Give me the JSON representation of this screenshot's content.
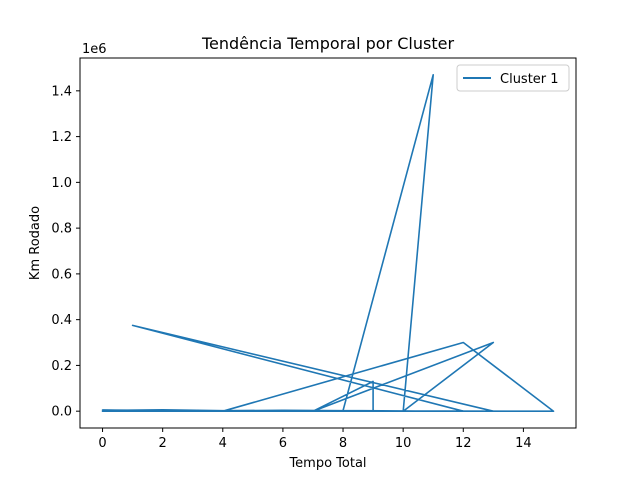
{
  "chart_data": {
    "type": "line",
    "title": "Tendência Temporal por Cluster",
    "xlabel": "Tempo Total",
    "ylabel": "Km Rodado",
    "y_scale_label": "1e6",
    "xlim": [
      -0.75,
      15.75
    ],
    "ylim": [
      -73500,
      1543500
    ],
    "x_ticks": [
      0,
      2,
      4,
      6,
      8,
      10,
      12,
      14
    ],
    "y_ticks": [
      0,
      200000,
      400000,
      600000,
      800000,
      1000000,
      1200000,
      1400000
    ],
    "y_tick_labels": [
      "0.0",
      "0.2",
      "0.4",
      "0.6",
      "0.8",
      "1.0",
      "1.2",
      "1.4"
    ],
    "grid": false,
    "legend_position": "top-right",
    "series": [
      {
        "name": "Cluster 1",
        "color": "#1f77b4",
        "x": [
          0,
          2,
          4,
          6,
          8,
          11,
          10,
          13,
          7,
          9,
          9,
          13,
          1,
          12,
          0,
          4,
          12,
          15,
          8,
          11,
          8,
          3,
          15,
          6,
          0,
          2
        ],
        "y": [
          3000,
          6000,
          2000,
          4000,
          2000,
          1470000,
          0,
          300000,
          0,
          130000,
          0,
          0,
          375000,
          0,
          0,
          0,
          300000,
          0,
          0,
          0,
          3000,
          2000,
          0,
          0,
          5000,
          2000
        ]
      }
    ]
  }
}
